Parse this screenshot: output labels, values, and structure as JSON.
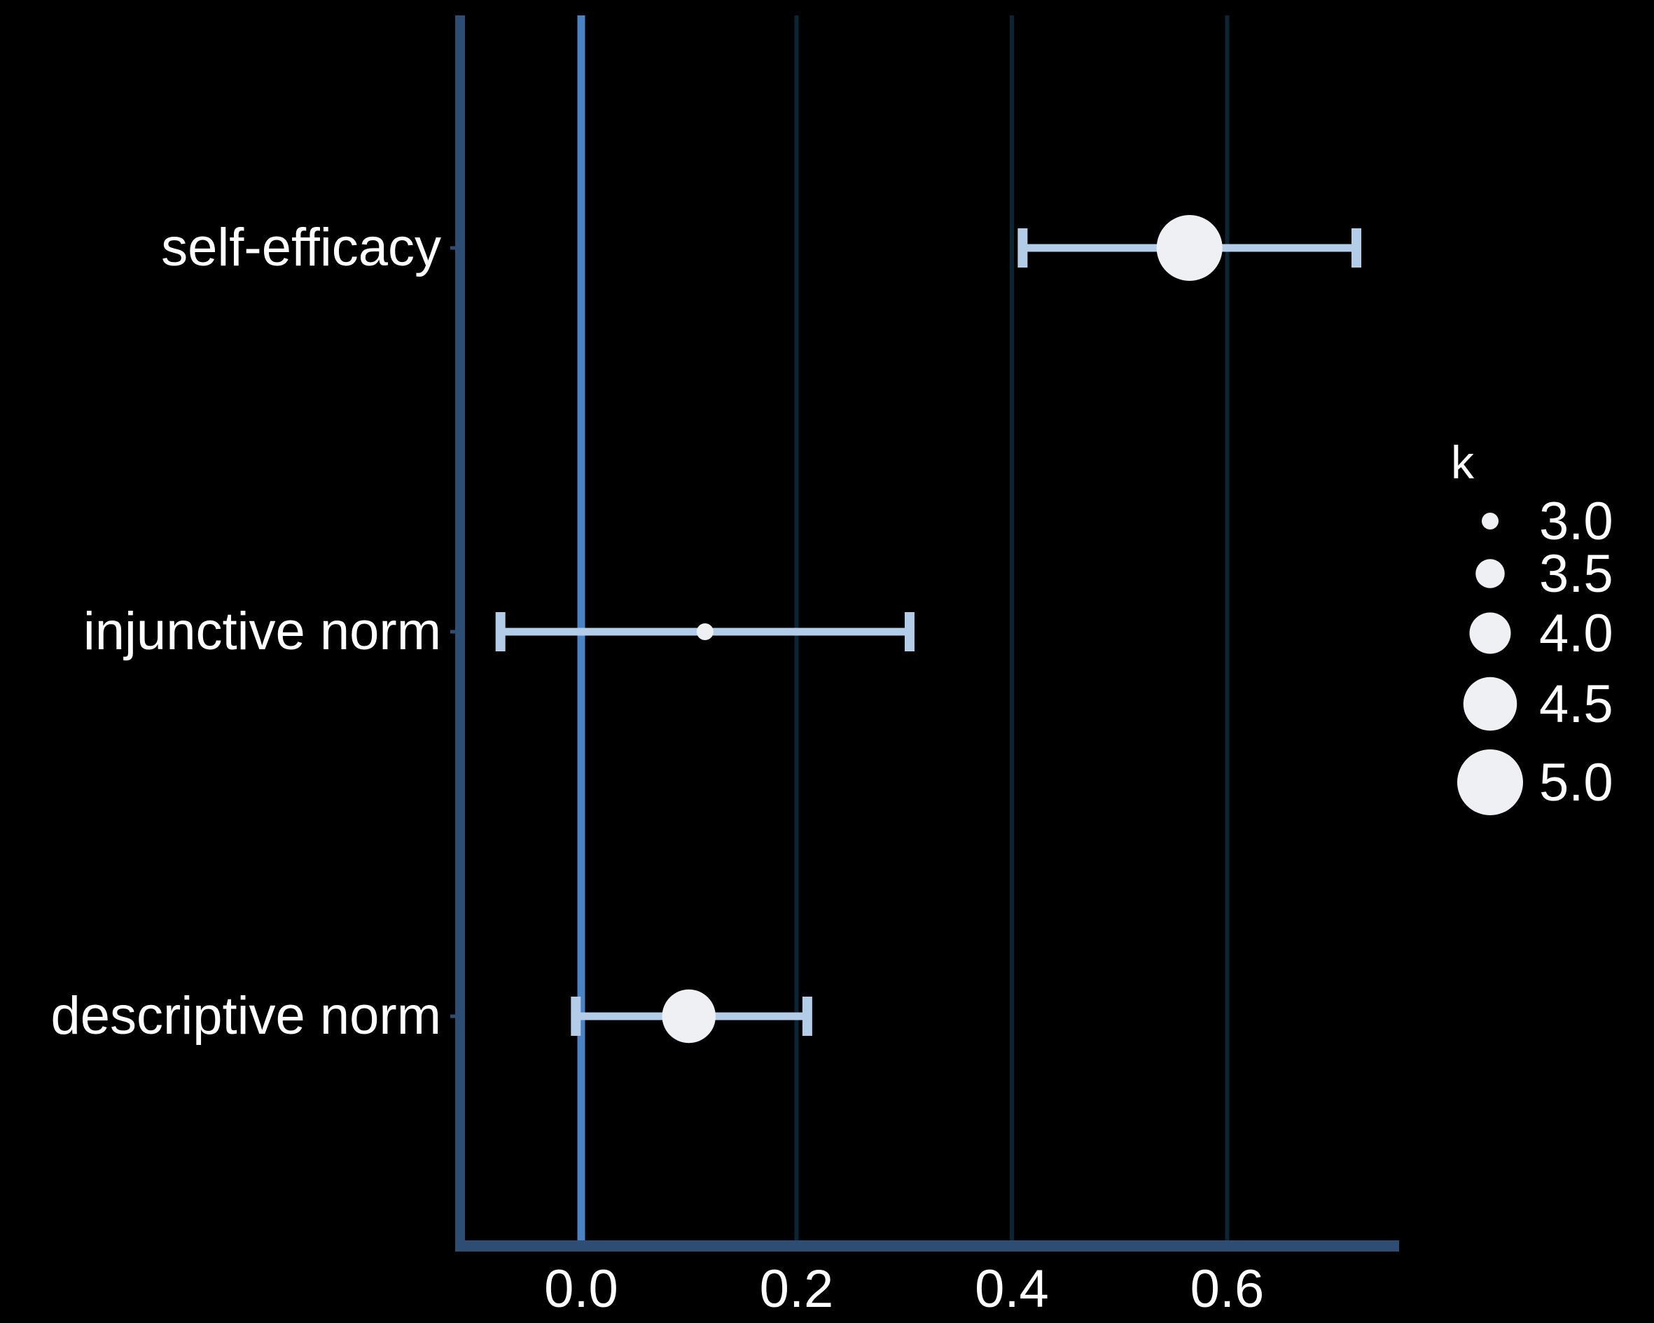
{
  "chart_data": {
    "type": "forest",
    "categories": [
      "self-efficacy",
      "injunctive norm",
      "descriptive norm"
    ],
    "points": [
      {
        "label": "self-efficacy",
        "estimate": 0.565,
        "lower": 0.41,
        "upper": 0.72,
        "k": 5
      },
      {
        "label": "injunctive norm",
        "estimate": 0.115,
        "lower": -0.075,
        "upper": 0.305,
        "k": 3
      },
      {
        "label": "descriptive norm",
        "estimate": 0.1,
        "lower": -0.005,
        "upper": 0.21,
        "k": 4.5
      }
    ],
    "xlim": [
      -0.113,
      0.76
    ],
    "xticks": [
      "0.0",
      "0.2",
      "0.4",
      "0.6"
    ],
    "xtick_values": [
      0.0,
      0.2,
      0.4,
      0.6
    ],
    "reference_line": 0.0,
    "xlabel": "",
    "ylabel": "",
    "grid": "vertical major lines",
    "legend": {
      "title": "k",
      "position": "right",
      "items": [
        "3.0",
        "3.5",
        "4.0",
        "4.5",
        "5.0"
      ],
      "values": [
        3.0,
        3.5,
        4.0,
        4.5,
        5.0
      ]
    },
    "colors": {
      "background": "#000000",
      "axis": "#2e4d72",
      "grid": "#0b2535",
      "reference": "#4a82c4",
      "errorbar": "#b3cde8",
      "point": "#eef0f3",
      "text": "#ffffff"
    }
  }
}
